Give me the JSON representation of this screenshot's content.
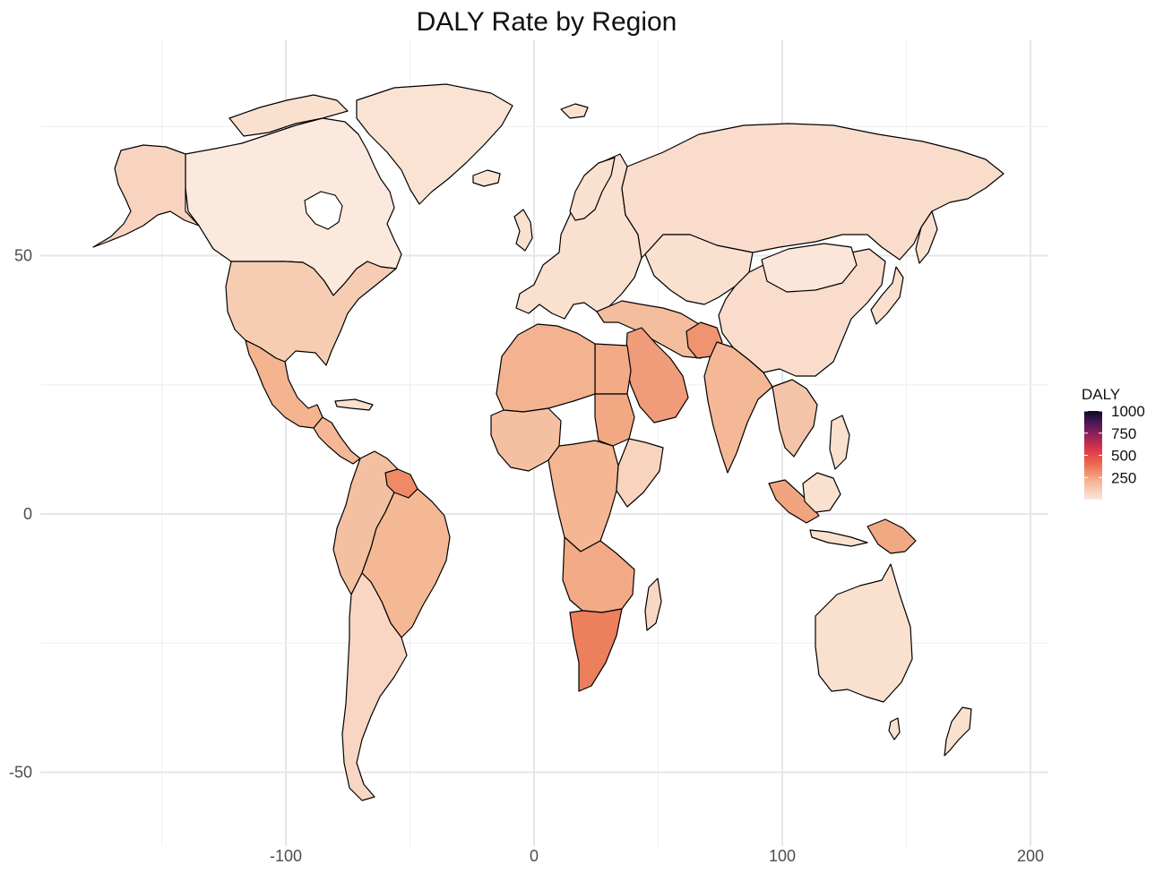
{
  "chart_data": {
    "type": "choropleth-map",
    "title": "DALY Rate by Region",
    "xlabel": "",
    "ylabel": "",
    "x_ticks": [
      -100,
      0,
      100,
      200
    ],
    "y_ticks": [
      50,
      0,
      -50
    ],
    "xlim": [
      -180,
      210
    ],
    "ylim": [
      -58,
      88
    ],
    "grid": true,
    "legend": {
      "title": "DALY",
      "position": "right",
      "range": [
        0,
        1000
      ],
      "ticks": [
        1000,
        750,
        500,
        250
      ],
      "palette": [
        "#fbe8dc",
        "#f5b597",
        "#ee6a4f",
        "#d7334a",
        "#8a1f5e",
        "#3b1552",
        "#0d0a1e"
      ]
    },
    "regions": [
      {
        "id": "greenland",
        "value": 120,
        "color": "#fbe3d4"
      },
      {
        "id": "canada",
        "value": 110,
        "color": "#fce9dd"
      },
      {
        "id": "alaska",
        "value": 180,
        "color": "#f8d4c0"
      },
      {
        "id": "usa",
        "value": 210,
        "color": "#f6cdb3"
      },
      {
        "id": "mexico",
        "value": 300,
        "color": "#f3b48f"
      },
      {
        "id": "central-america",
        "value": 280,
        "color": "#f4b896"
      },
      {
        "id": "south-america-north",
        "value": 250,
        "color": "#f3c0a2"
      },
      {
        "id": "brazil",
        "value": 270,
        "color": "#f4b894"
      },
      {
        "id": "guyana",
        "value": 420,
        "color": "#ee8a66"
      },
      {
        "id": "south-america-south",
        "value": 180,
        "color": "#f8d6c3"
      },
      {
        "id": "iceland",
        "value": 130,
        "color": "#fbe3d4"
      },
      {
        "id": "europe",
        "value": 150,
        "color": "#fae0cf"
      },
      {
        "id": "russia",
        "value": 160,
        "color": "#f9dccb"
      },
      {
        "id": "turkey-iran",
        "value": 260,
        "color": "#f3bd9e"
      },
      {
        "id": "afghanistan",
        "value": 400,
        "color": "#ef9371"
      },
      {
        "id": "saudi-arabia",
        "value": 380,
        "color": "#f09b79"
      },
      {
        "id": "india",
        "value": 300,
        "color": "#f4b896"
      },
      {
        "id": "china",
        "value": 160,
        "color": "#f9dccb"
      },
      {
        "id": "mongolia",
        "value": 120,
        "color": "#fbe6d9"
      },
      {
        "id": "southeast-asia",
        "value": 250,
        "color": "#f4c4a8"
      },
      {
        "id": "indonesia",
        "value": 350,
        "color": "#f1a480"
      },
      {
        "id": "japan",
        "value": 140,
        "color": "#fbe0cf"
      },
      {
        "id": "north-africa",
        "value": 300,
        "color": "#f4b390"
      },
      {
        "id": "egypt",
        "value": 330,
        "color": "#f2ab86"
      },
      {
        "id": "sudan",
        "value": 340,
        "color": "#f2a883"
      },
      {
        "id": "west-africa",
        "value": 260,
        "color": "#f5c0a2"
      },
      {
        "id": "central-africa",
        "value": 290,
        "color": "#f4b693"
      },
      {
        "id": "east-africa",
        "value": 200,
        "color": "#f8d3bd"
      },
      {
        "id": "southern-africa",
        "value": 330,
        "color": "#f2a986"
      },
      {
        "id": "south-africa",
        "value": 450,
        "color": "#ec7f5c"
      },
      {
        "id": "madagascar",
        "value": 180,
        "color": "#f8d8c5"
      },
      {
        "id": "australia",
        "value": 140,
        "color": "#fae0cf"
      },
      {
        "id": "new-zealand",
        "value": 140,
        "color": "#fae0cf"
      },
      {
        "id": "papua-new-guinea",
        "value": 320,
        "color": "#f1a984"
      }
    ]
  }
}
